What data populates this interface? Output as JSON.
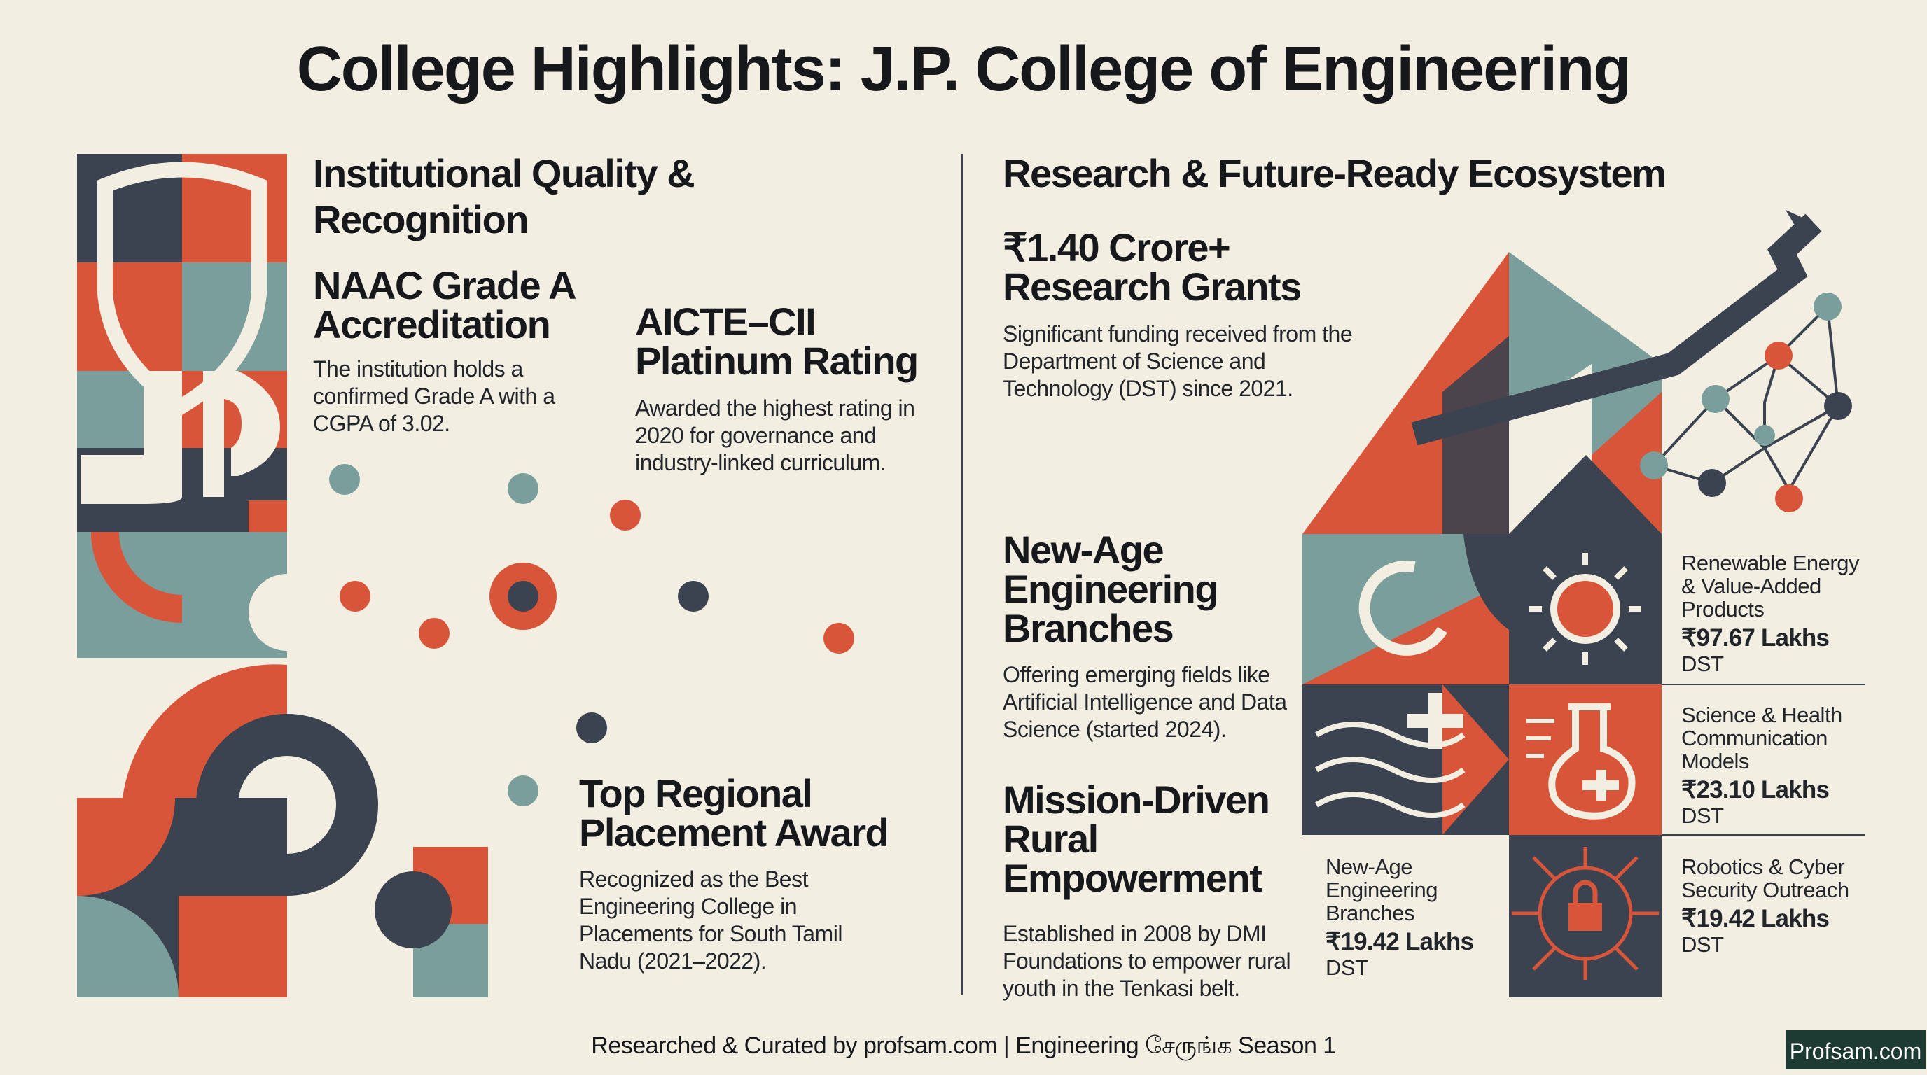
{
  "title": "College Highlights: J.P. College of Engineering",
  "left": {
    "heading": "Institutional Quality & Recognition",
    "items": [
      {
        "title": "NAAC Grade A Accreditation",
        "text": "The institution holds a confirmed Grade A with a CGPA of 3.02."
      },
      {
        "title": "AICTE–CII Platinum Rating",
        "text": "Awarded the highest rating in 2020 for governance and industry-linked curriculum."
      },
      {
        "title": "Top Regional Placement Award",
        "text": "Recognized as the Best Engineering College in Placements for South Tamil Nadu (2021–2022)."
      }
    ]
  },
  "right": {
    "heading": "Research & Future-Ready Ecosystem",
    "items": [
      {
        "title": "₹1.40 Crore+ Research Grants",
        "text": "Significant funding received from the Department of Science and Technology (DST) since 2021."
      },
      {
        "title": "New-Age Engineering Branches",
        "text": "Offering emerging fields like Artificial Intelligence and Data Science (started 2024)."
      },
      {
        "title": "Mission-Driven Rural Empowerment",
        "text": "Established in 2008 by DMI Foundations to empower rural youth in the Tenkasi belt."
      }
    ],
    "grants": [
      {
        "name": "Renewable Energy & Value-Added Products",
        "amount": "₹97.67 Lakhs",
        "source": "DST"
      },
      {
        "name": "Science & Health Communication Models",
        "amount": "₹23.10 Lakhs",
        "source": "DST"
      },
      {
        "name": "Robotics & Cyber Security Outreach",
        "amount": "₹19.42 Lakhs",
        "source": "DST"
      },
      {
        "name": "New-Age Engineering Branches",
        "amount": "₹19.42 Lakhs",
        "source": "DST"
      }
    ]
  },
  "footer": "Researched & Curated by profsam.com | Engineering சேருங்க Season 1",
  "logo": "Profsam.com"
}
